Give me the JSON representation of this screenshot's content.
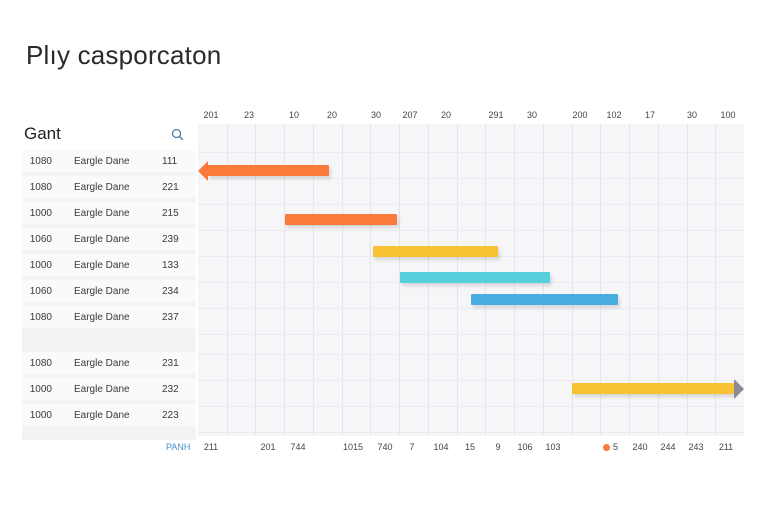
{
  "app": {
    "title": "Plıy casporcaton"
  },
  "panel": {
    "title": "Gant",
    "search_icon": "search-icon"
  },
  "rows": [
    {
      "id": "1080",
      "name": "Eargle Dane",
      "value": "111"
    },
    {
      "id": "1080",
      "name": "Eargle Dane",
      "value": "221"
    },
    {
      "id": "1000",
      "name": "Eargle Dane",
      "value": "215"
    },
    {
      "id": "1060",
      "name": "Eargle Dane",
      "value": "239"
    },
    {
      "id": "1000",
      "name": "Eargle Dane",
      "value": "133"
    },
    {
      "id": "1060",
      "name": "Eargle Dane",
      "value": "234"
    },
    {
      "id": "1080",
      "name": "Eargle Dane",
      "value": "237"
    },
    {
      "id": "1080",
      "name": "Eargle Dane",
      "value": "231"
    },
    {
      "id": "1000",
      "name": "Eargle Dane",
      "value": "232"
    },
    {
      "id": "1000",
      "name": "Eargle Dane",
      "value": "223"
    }
  ],
  "timeline": {
    "top_ticks": [
      "201",
      "23",
      "10",
      "20",
      "30",
      "207",
      "20",
      "291",
      "30",
      "200",
      "102",
      "17",
      "30",
      "100"
    ],
    "bottom_ticks": [
      "211",
      "201",
      "744",
      "1015",
      "740",
      "7",
      "104",
      "15",
      "9",
      "106",
      "103",
      "240",
      "244",
      "243",
      "211"
    ],
    "footer_label": "PANH",
    "legend_value": "5"
  },
  "tasks": [
    {
      "row": 0,
      "start": 0,
      "end": 0.24,
      "color": "#fa7a3c",
      "arrow": "left"
    },
    {
      "row": 2,
      "start": 0.16,
      "end": 0.365,
      "color": "#fa7a3c"
    },
    {
      "row": 3,
      "start": 0.32,
      "end": 0.55,
      "color": "#f8c234"
    },
    {
      "row": 4,
      "start": 0.37,
      "end": 0.645,
      "color": "#58d0dc"
    },
    {
      "row": 5,
      "start": 0.5,
      "end": 0.77,
      "color": "#4aaee0"
    },
    {
      "row": 8,
      "start": 0.685,
      "end": 1.0,
      "color": "#f8c234",
      "arrow": "right"
    }
  ],
  "colors": {
    "accent": "#4a90c8",
    "legend_dot": "#fa7a3c"
  }
}
